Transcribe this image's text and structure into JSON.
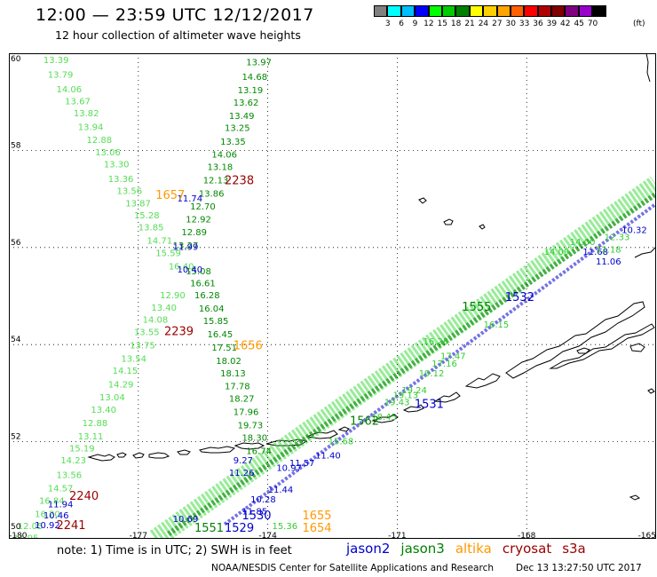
{
  "header": {
    "title": "12:00 — 23:59 UTC 12/12/2017",
    "subtitle": "12 hour collection of altimeter wave heights"
  },
  "legend_scale": {
    "units": "(ft)",
    "ticks": [
      "3",
      "6",
      "9",
      "12",
      "15",
      "18",
      "21",
      "24",
      "27",
      "30",
      "33",
      "36",
      "39",
      "42",
      "45",
      "70"
    ],
    "colors": [
      "#808080",
      "#00ffff",
      "#00bfff",
      "#0000ff",
      "#00ff00",
      "#00cc00",
      "#008000",
      "#ffff00",
      "#ffd000",
      "#ffa500",
      "#ff6000",
      "#ff0000",
      "#b00000",
      "#800000",
      "#800080",
      "#9900cc",
      "#000000"
    ]
  },
  "map": {
    "lon_ticks": [
      "-180",
      "-177",
      "-174",
      "-171",
      "-168",
      "-165"
    ],
    "lat_ticks": [
      "60",
      "58",
      "56",
      "54",
      "52",
      "50"
    ],
    "lon_range": [
      -180,
      -165
    ],
    "lat_range": [
      50,
      60
    ],
    "satellite_colors": {
      "jason2": "#0000cc",
      "jason3": "#008000",
      "jason3_light": "#44dd44",
      "altika": "#ff9900",
      "cryosat": "#990000"
    },
    "time_labels": [
      {
        "text": "2238",
        "sat": "cryosat",
        "lon": -175.0,
        "lat": 57.3
      },
      {
        "text": "2239",
        "sat": "cryosat",
        "lon": -176.4,
        "lat": 54.2
      },
      {
        "text": "2240",
        "sat": "cryosat",
        "lon": -178.6,
        "lat": 50.8
      },
      {
        "text": "2241",
        "sat": "cryosat",
        "lon": -178.9,
        "lat": 50.2
      },
      {
        "text": "1657",
        "sat": "altika",
        "lon": -176.6,
        "lat": 57.0
      },
      {
        "text": "1656",
        "sat": "altika",
        "lon": -174.8,
        "lat": 53.9
      },
      {
        "text": "1655",
        "sat": "altika",
        "lon": -173.2,
        "lat": 50.4
      },
      {
        "text": "1654",
        "sat": "altika",
        "lon": -173.2,
        "lat": 50.15
      },
      {
        "text": "1532",
        "sat": "jason2",
        "lon": -168.5,
        "lat": 54.9
      },
      {
        "text": "1531",
        "sat": "jason2",
        "lon": -170.6,
        "lat": 52.7
      },
      {
        "text": "1530",
        "sat": "jason2",
        "lon": -174.6,
        "lat": 50.4
      },
      {
        "text": "1529",
        "sat": "jason2",
        "lon": -175.0,
        "lat": 50.15
      },
      {
        "text": "1562",
        "sat": "jason3",
        "lon": -172.1,
        "lat": 52.35
      },
      {
        "text": "1555",
        "sat": "jason3",
        "lon": -169.5,
        "lat": 54.7
      },
      {
        "text": "1551",
        "sat": "jason3",
        "lon": -175.7,
        "lat": 50.15
      }
    ],
    "cryosat_values": [
      {
        "text": "13.39",
        "lon": -179.2,
        "lat": 59.8
      },
      {
        "text": "13.79",
        "lon": -179.1,
        "lat": 59.5
      },
      {
        "text": "14.06",
        "lon": -178.9,
        "lat": 59.2
      },
      {
        "text": "13.67",
        "lon": -178.7,
        "lat": 58.95
      },
      {
        "text": "13.82",
        "lon": -178.5,
        "lat": 58.7
      },
      {
        "text": "13.94",
        "lon": -178.4,
        "lat": 58.42
      },
      {
        "text": "12.88",
        "lon": -178.2,
        "lat": 58.15
      },
      {
        "text": "13.06",
        "lon": -178.0,
        "lat": 57.9
      },
      {
        "text": "13.30",
        "lon": -177.8,
        "lat": 57.65
      },
      {
        "text": "13.36",
        "lon": -177.7,
        "lat": 57.35
      },
      {
        "text": "13.56",
        "lon": -177.5,
        "lat": 57.1
      },
      {
        "text": "13.87",
        "lon": -177.3,
        "lat": 56.85
      },
      {
        "text": "15.28",
        "lon": -177.1,
        "lat": 56.6
      },
      {
        "text": "13.85",
        "lon": -177.0,
        "lat": 56.35
      },
      {
        "text": "14.71",
        "lon": -176.8,
        "lat": 56.08
      },
      {
        "text": "15.59",
        "lon": -176.6,
        "lat": 55.82
      },
      {
        "text": "16.40",
        "lon": -176.3,
        "lat": 55.55
      },
      {
        "text": "12.90",
        "lon": -176.5,
        "lat": 54.95
      },
      {
        "text": "13.40",
        "lon": -176.7,
        "lat": 54.7
      },
      {
        "text": "14.08",
        "lon": -176.9,
        "lat": 54.45
      },
      {
        "text": "13.55",
        "lon": -177.1,
        "lat": 54.2
      },
      {
        "text": "13.75",
        "lon": -177.2,
        "lat": 53.92
      },
      {
        "text": "13.54",
        "lon": -177.4,
        "lat": 53.65
      },
      {
        "text": "14.15",
        "lon": -177.6,
        "lat": 53.4
      },
      {
        "text": "14.29",
        "lon": -177.7,
        "lat": 53.12
      },
      {
        "text": "13.04",
        "lon": -177.9,
        "lat": 52.85
      },
      {
        "text": "13.40",
        "lon": -178.1,
        "lat": 52.6
      },
      {
        "text": "12.88",
        "lon": -178.3,
        "lat": 52.32
      },
      {
        "text": "13.11",
        "lon": -178.4,
        "lat": 52.05
      },
      {
        "text": "15.19",
        "lon": -178.6,
        "lat": 51.8
      },
      {
        "text": "14.23",
        "lon": -178.8,
        "lat": 51.55
      },
      {
        "text": "13.56",
        "lon": -178.9,
        "lat": 51.25
      },
      {
        "text": "14.57",
        "lon": -179.1,
        "lat": 50.98
      },
      {
        "text": "16.84",
        "lon": -179.3,
        "lat": 50.72
      },
      {
        "text": "16.20",
        "lon": -179.4,
        "lat": 50.45
      },
      {
        "text": "12.05",
        "lon": -179.8,
        "lat": 50.2
      },
      {
        "text": "11.95",
        "lon": -179.9,
        "lat": 49.95
      }
    ],
    "altika_values": [
      {
        "text": "13.97",
        "lon": -174.5,
        "lat": 59.75
      },
      {
        "text": "14.68",
        "lon": -174.6,
        "lat": 59.45
      },
      {
        "text": "13.19",
        "lon": -174.7,
        "lat": 59.18
      },
      {
        "text": "13.62",
        "lon": -174.8,
        "lat": 58.92
      },
      {
        "text": "13.49",
        "lon": -174.9,
        "lat": 58.65
      },
      {
        "text": "13.25",
        "lon": -175.0,
        "lat": 58.4
      },
      {
        "text": "13.35",
        "lon": -175.1,
        "lat": 58.12
      },
      {
        "text": "14.06",
        "lon": -175.3,
        "lat": 57.85
      },
      {
        "text": "13.18",
        "lon": -175.4,
        "lat": 57.6
      },
      {
        "text": "12.13",
        "lon": -175.5,
        "lat": 57.32
      },
      {
        "text": "13.86",
        "lon": -175.6,
        "lat": 57.05
      },
      {
        "text": "12.70",
        "lon": -175.8,
        "lat": 56.78
      },
      {
        "text": "12.92",
        "lon": -175.9,
        "lat": 56.52
      },
      {
        "text": "12.89",
        "lon": -176.0,
        "lat": 56.25
      },
      {
        "text": "13.27",
        "lon": -176.2,
        "lat": 55.98
      },
      {
        "text": "15.08",
        "lon": -175.9,
        "lat": 55.45
      },
      {
        "text": "16.61",
        "lon": -175.8,
        "lat": 55.2
      },
      {
        "text": "16.28",
        "lon": -175.7,
        "lat": 54.95
      },
      {
        "text": "16.04",
        "lon": -175.6,
        "lat": 54.68
      },
      {
        "text": "15.85",
        "lon": -175.5,
        "lat": 54.42
      },
      {
        "text": "16.45",
        "lon": -175.4,
        "lat": 54.15
      },
      {
        "text": "17.51",
        "lon": -175.3,
        "lat": 53.88
      },
      {
        "text": "18.02",
        "lon": -175.2,
        "lat": 53.6
      },
      {
        "text": "18.13",
        "lon": -175.1,
        "lat": 53.35
      },
      {
        "text": "17.78",
        "lon": -175.0,
        "lat": 53.08
      },
      {
        "text": "18.27",
        "lon": -174.9,
        "lat": 52.82
      },
      {
        "text": "17.96",
        "lon": -174.8,
        "lat": 52.55
      },
      {
        "text": "19.73",
        "lon": -174.7,
        "lat": 52.28
      },
      {
        "text": "18.30",
        "lon": -174.6,
        "lat": 52.02
      },
      {
        "text": "16.74",
        "lon": -174.5,
        "lat": 51.75
      }
    ],
    "jason2_values": [
      {
        "text": "11.74",
        "lon": -176.1,
        "lat": 56.95
      },
      {
        "text": "11.99",
        "lon": -176.2,
        "lat": 55.95
      },
      {
        "text": "10.40",
        "lon": -176.1,
        "lat": 55.48
      },
      {
        "text": "11.94",
        "lon": -179.1,
        "lat": 50.65
      },
      {
        "text": "10.46",
        "lon": -179.2,
        "lat": 50.42
      },
      {
        "text": "10.92",
        "lon": -179.4,
        "lat": 50.22
      },
      {
        "text": "9.27",
        "lon": -174.8,
        "lat": 51.55
      },
      {
        "text": "11.26",
        "lon": -174.9,
        "lat": 51.3
      },
      {
        "text": "10.97",
        "lon": -173.8,
        "lat": 51.4
      },
      {
        "text": "11.44",
        "lon": -174.0,
        "lat": 50.95
      },
      {
        "text": "11.40",
        "lon": -172.9,
        "lat": 51.65
      },
      {
        "text": "11.57",
        "lon": -173.5,
        "lat": 51.5
      },
      {
        "text": "10.28",
        "lon": -174.4,
        "lat": 50.75
      },
      {
        "text": "11.85",
        "lon": -174.6,
        "lat": 50.5
      },
      {
        "text": "11.06",
        "lon": -166.4,
        "lat": 55.65
      },
      {
        "text": "11.68",
        "lon": -166.7,
        "lat": 55.85
      },
      {
        "text": "10.32",
        "lon": -165.8,
        "lat": 56.3
      },
      {
        "text": "10.69",
        "lon": -176.2,
        "lat": 50.35
      }
    ],
    "jason3_values": [
      {
        "text": "15.68",
        "lon": -172.6,
        "lat": 51.95
      },
      {
        "text": "18.45",
        "lon": -171.6,
        "lat": 52.45
      },
      {
        "text": "19.43",
        "lon": -171.3,
        "lat": 52.75
      },
      {
        "text": "19.24",
        "lon": -170.9,
        "lat": 53.0
      },
      {
        "text": "19.13",
        "lon": -171.1,
        "lat": 52.9
      },
      {
        "text": "19.12",
        "lon": -170.5,
        "lat": 53.35
      },
      {
        "text": "17.47",
        "lon": -170.0,
        "lat": 53.7
      },
      {
        "text": "17.16",
        "lon": -170.2,
        "lat": 53.55
      },
      {
        "text": "16.26",
        "lon": -170.4,
        "lat": 54.0
      },
      {
        "text": "16.15",
        "lon": -169.0,
        "lat": 54.35
      },
      {
        "text": "15.36",
        "lon": -173.9,
        "lat": 50.2
      },
      {
        "text": "14.00",
        "lon": -167.0,
        "lat": 56.05
      },
      {
        "text": "14.09",
        "lon": -167.6,
        "lat": 55.85
      },
      {
        "text": "12.33",
        "lon": -166.2,
        "lat": 56.15
      },
      {
        "text": "12.18",
        "lon": -166.4,
        "lat": 55.9
      }
    ],
    "tracks": [
      {
        "sat": "jason3_light",
        "from": [
          -176.6,
          50.0
        ],
        "to": [
          -165.0,
          57.3
        ],
        "width": 22
      },
      {
        "sat": "jason3",
        "from": [
          -176.3,
          50.1
        ],
        "to": [
          -165.0,
          57.1
        ],
        "width": 6
      },
      {
        "sat": "jason2",
        "from": [
          -175.0,
          50.3
        ],
        "to": [
          -165.0,
          56.9
        ],
        "width": 4
      }
    ]
  },
  "footer": {
    "note": "note:  1) Time is in UTC;  2) SWH is in feet",
    "satellites": [
      {
        "name": "jason2",
        "color": "#0000cc"
      },
      {
        "name": "jason3",
        "color": "#008000"
      },
      {
        "name": "altika",
        "color": "#ff9900"
      },
      {
        "name": "cryosat",
        "color": "#990000"
      },
      {
        "name": "s3a",
        "color": "#990000"
      }
    ],
    "credit": "NOAA/NESDIS Center for Satellite Applications and Research",
    "generated": "Dec 13 13:27:50 UTC 2017"
  }
}
